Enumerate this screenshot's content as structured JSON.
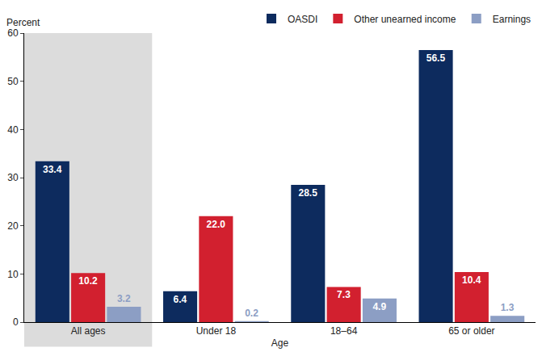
{
  "chart_data": {
    "type": "bar",
    "ylabel": "Percent",
    "xlabel": "Age",
    "categories": [
      "All ages",
      "Under 18",
      "18–64",
      "65 or older"
    ],
    "series": [
      {
        "name": "OASDI",
        "color": "#0d2b5e",
        "values": [
          33.4,
          6.4,
          28.5,
          56.5
        ],
        "value_labels": [
          "33.4",
          "6.4",
          "28.5",
          "56.5"
        ]
      },
      {
        "name": "Other unearned income",
        "color": "#d2202f",
        "values": [
          10.2,
          22.0,
          7.3,
          10.4
        ],
        "value_labels": [
          "10.2",
          "22.0",
          "7.3",
          "10.4"
        ]
      },
      {
        "name": "Earnings",
        "color": "#8c9ec4",
        "values": [
          3.2,
          0.2,
          4.9,
          1.3
        ],
        "value_labels": [
          "3.2",
          "0.2",
          "4.9",
          "1.3"
        ]
      }
    ],
    "ylim": [
      0,
      60
    ],
    "yticks": [
      0,
      10,
      20,
      30,
      40,
      50,
      60
    ],
    "grid": false,
    "legend": "top right",
    "data_labels": true
  }
}
